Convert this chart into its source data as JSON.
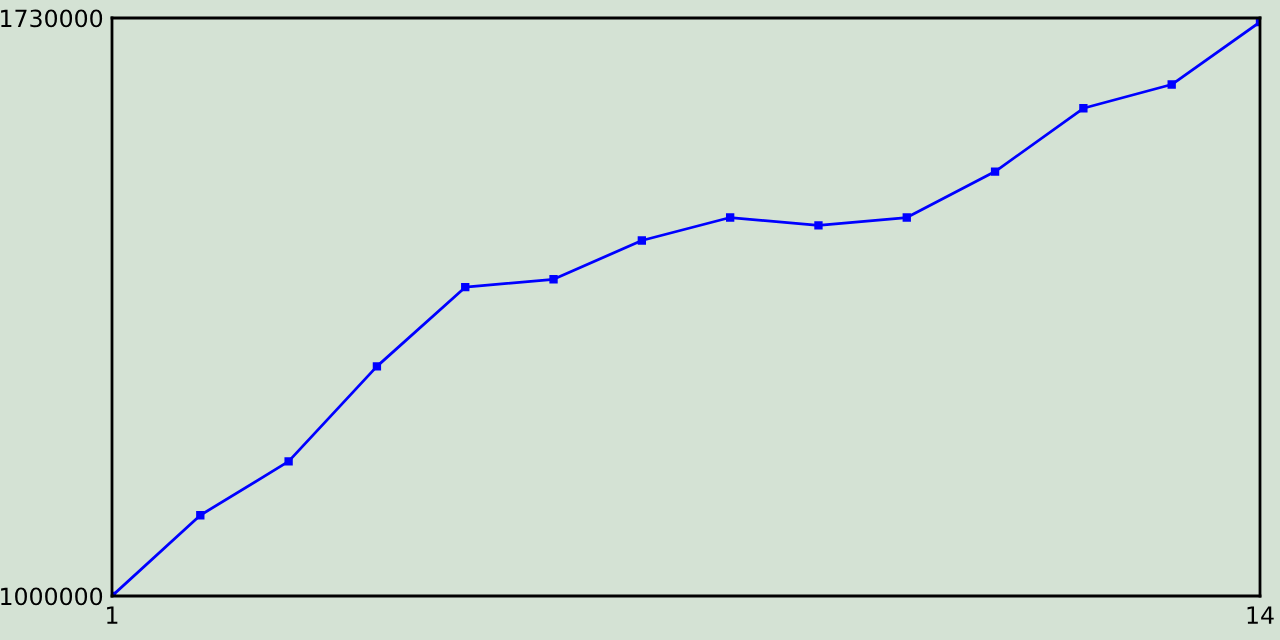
{
  "chart_data": {
    "type": "line",
    "x": [
      1,
      2,
      3,
      4,
      5,
      6,
      7,
      8,
      9,
      10,
      11,
      12,
      13,
      14
    ],
    "series": [
      {
        "color": "#0000ff",
        "values": [
          1000000,
          1102000,
          1170000,
          1290000,
          1390000,
          1400000,
          1449000,
          1478000,
          1468000,
          1478000,
          1536000,
          1616000,
          1646000,
          1725000
        ]
      }
    ],
    "xlim": [
      1,
      14
    ],
    "xticks": [
      1,
      14
    ],
    "ylim": [
      1000000,
      1730000
    ],
    "yticks": [
      1000000,
      1730000
    ],
    "marker": "square",
    "line_style": "solid"
  }
}
